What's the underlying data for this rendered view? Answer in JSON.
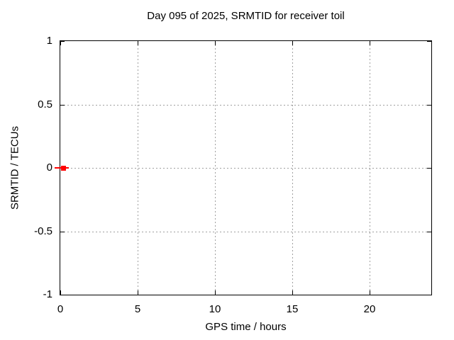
{
  "chart_data": {
    "type": "scatter",
    "title": "Day 095 of 2025, SRMTID for receiver toil",
    "xlabel": "GPS time / hours",
    "ylabel": "SRMTID / TECUs",
    "xlim": [
      0,
      24
    ],
    "ylim": [
      -1,
      1
    ],
    "xticks": [
      0,
      5,
      10,
      15,
      20
    ],
    "yticks": [
      -1,
      -0.5,
      0,
      0.5,
      1
    ],
    "grid": true,
    "grid_style": "dotted",
    "legend_position": "none",
    "series": [
      {
        "name": "SRMTID",
        "marker": "filled-square",
        "color": "#ff0000",
        "points": [
          {
            "x": 0.2,
            "y": 0.0,
            "xlow": -0.35,
            "xhigh": 0.55
          }
        ]
      }
    ]
  },
  "colors": {
    "background": "#ffffff",
    "plot_border": "#000000",
    "grid": "#a0a0a0",
    "tick": "#000000",
    "text": "#000000"
  }
}
